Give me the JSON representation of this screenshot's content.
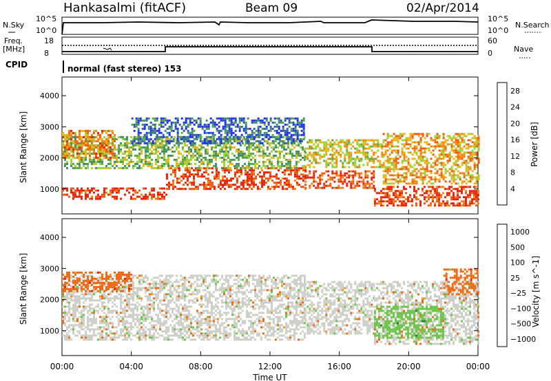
{
  "header": {
    "station": "Hankasalmi (fitACF)",
    "beam": "Beam 09",
    "date": "02/Apr/2014"
  },
  "noise_panel": {
    "left_label": "N.Sky",
    "right_label": "N.Search",
    "left_ticks": [
      "10^5",
      "10^0"
    ],
    "right_ticks": [
      "10^5",
      "10^0"
    ]
  },
  "freq_panel": {
    "left_label_1": "Freq.",
    "left_label_2": "[MHz]",
    "right_label": "Nave",
    "left_ticks": [
      "18",
      "8"
    ],
    "right_ticks": [
      "60",
      "0"
    ]
  },
  "cpid": {
    "label": "CPID",
    "value": "normal (fast stereo) 153"
  },
  "chart_data": [
    {
      "type": "heatmap",
      "name": "power",
      "ylabel": "Slant Range [km]",
      "xlabel": "Time UT",
      "ylim": [
        200,
        4600
      ],
      "xlim": [
        0,
        24
      ],
      "yticks": [
        "1000",
        "2000",
        "3000",
        "4000"
      ],
      "xticks": [
        "00:00",
        "04:00",
        "08:00",
        "12:00",
        "16:00",
        "20:00",
        "00:00"
      ],
      "colorbar_label": "Power [dB]",
      "colorbar_ticks": [
        "4",
        "8",
        "12",
        "16",
        "20",
        "24",
        "28"
      ],
      "colorbar_range": [
        0,
        30
      ],
      "colors": [
        "#1f2fff",
        "#2e5aa8",
        "#3f8f6a",
        "#5aa84a",
        "#9fd23a",
        "#e8b61a",
        "#f38414",
        "#ee5a10",
        "#e8220c"
      ],
      "bands": [
        {
          "t": [
            0,
            6
          ],
          "range": [
            700,
            1050
          ],
          "level": 28
        },
        {
          "t": [
            6,
            14
          ],
          "range": [
            1000,
            1700
          ],
          "level": 27
        },
        {
          "t": [
            14,
            18
          ],
          "range": [
            1050,
            1600
          ],
          "level": 26
        },
        {
          "t": [
            18,
            24
          ],
          "range": [
            500,
            1100
          ],
          "level": 27
        },
        {
          "t": [
            0,
            14
          ],
          "range": [
            1700,
            2700
          ],
          "level": 13
        },
        {
          "t": [
            14,
            18.5
          ],
          "range": [
            1700,
            2600
          ],
          "level": 17
        },
        {
          "t": [
            18.5,
            24
          ],
          "range": [
            1200,
            2800
          ],
          "level": 20
        },
        {
          "t": [
            4,
            14
          ],
          "range": [
            2500,
            3300
          ],
          "level": 5
        },
        {
          "t": [
            0,
            3
          ],
          "range": [
            2000,
            2900
          ],
          "level": 22
        }
      ]
    },
    {
      "type": "heatmap",
      "name": "velocity",
      "ylabel": "Slant Range [km]",
      "xlabel": "Time UT",
      "ylim": [
        200,
        4600
      ],
      "xlim": [
        0,
        24
      ],
      "yticks": [
        "1000",
        "2000",
        "3000",
        "4000"
      ],
      "xticks": [
        "00:00",
        "04:00",
        "08:00",
        "12:00",
        "16:00",
        "20:00",
        "00:00"
      ],
      "colorbar_label": "Velocity [m s^-1]",
      "colorbar_ticks": [
        "1000",
        "500",
        "100",
        "25",
        "−25",
        "−100",
        "−500",
        "−1000"
      ],
      "colors": [
        "#2f48c8",
        "#2f7a55",
        "#6fc64a",
        "#cfcfc9",
        "#cfcfc9",
        "#ef9a24",
        "#ee6a14",
        "#e8260c"
      ],
      "bands": [
        {
          "t": [
            0,
            14
          ],
          "range": [
            700,
            2800
          ],
          "level": 0
        },
        {
          "t": [
            14,
            18
          ],
          "range": [
            900,
            2600
          ],
          "level": 0
        },
        {
          "t": [
            18,
            24
          ],
          "range": [
            600,
            2600
          ],
          "level": 0
        },
        {
          "t": [
            0,
            4
          ],
          "range": [
            2300,
            2900
          ],
          "level": -300
        },
        {
          "t": [
            18,
            22
          ],
          "range": [
            800,
            1800
          ],
          "level": 120
        },
        {
          "t": [
            22,
            24
          ],
          "range": [
            2200,
            3000
          ],
          "level": -200
        }
      ]
    }
  ],
  "time_axis_label": "Time UT"
}
